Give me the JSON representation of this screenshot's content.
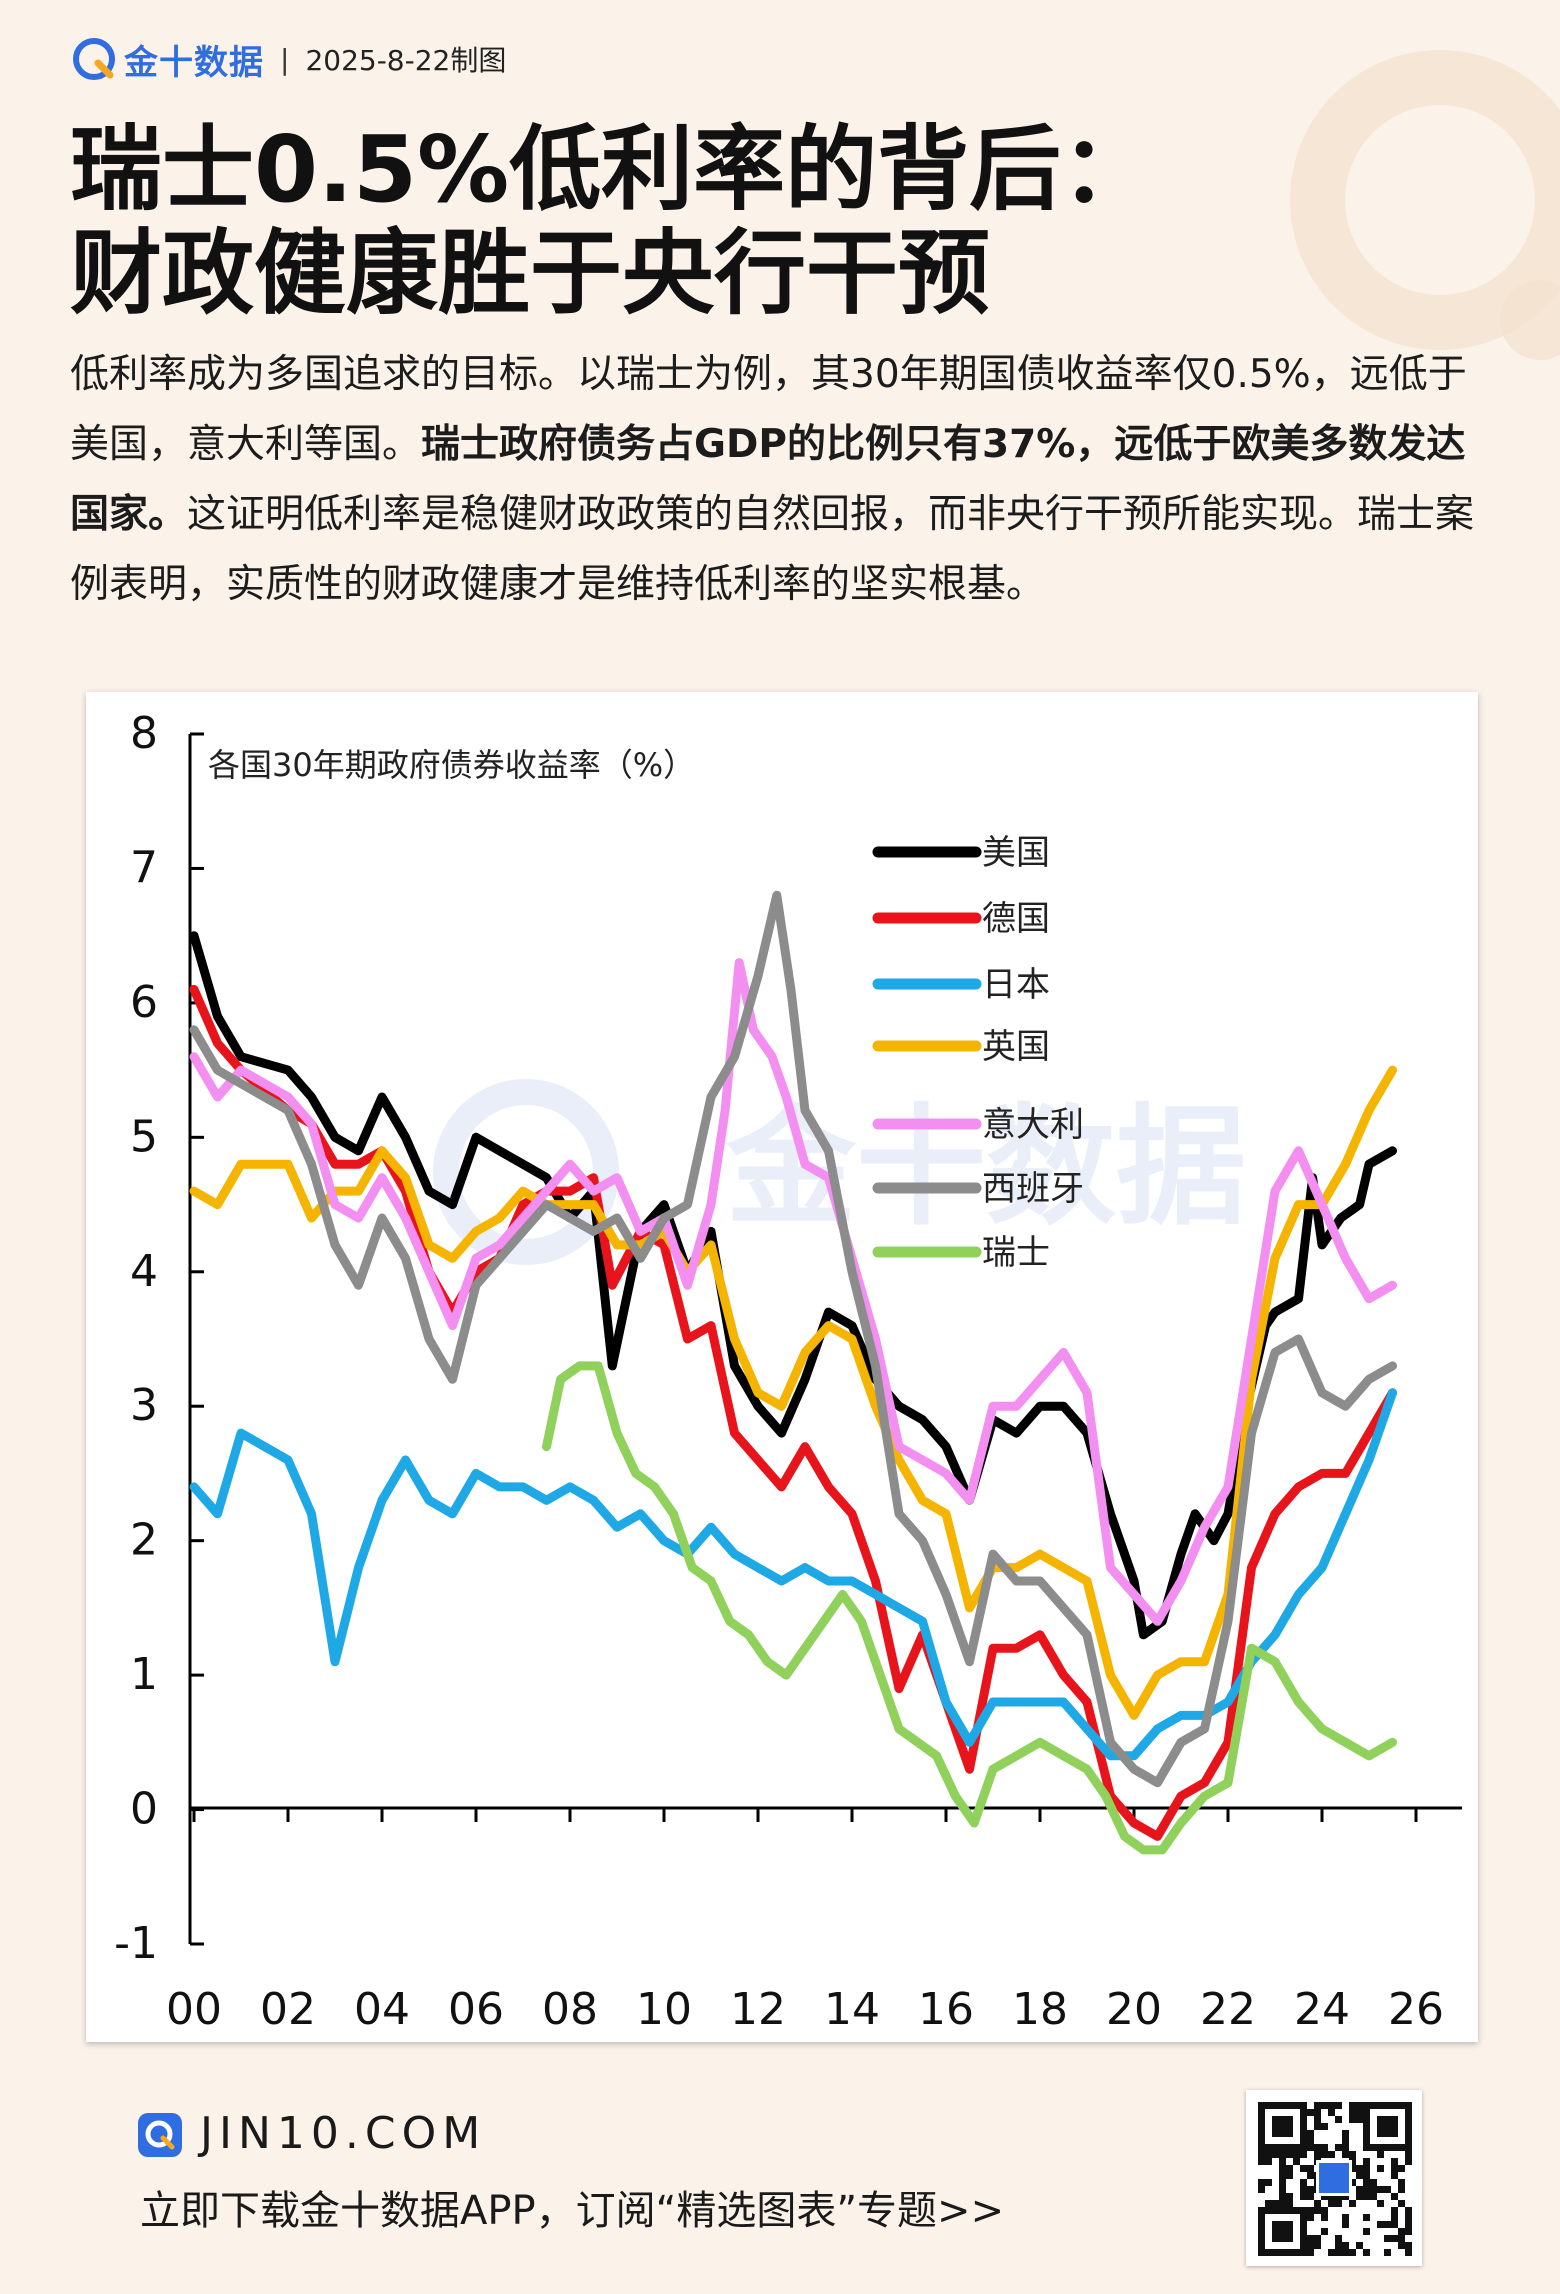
{
  "header": {
    "brand": "金十数据",
    "separator": "|",
    "date": "2025-8-22制图"
  },
  "title": {
    "line1": "瑞士0.5%低利率的背后：",
    "line2": "财政健康胜于央行干预"
  },
  "paragraph": {
    "part1": "低利率成为多国追求的目标。以瑞士为例，其30年期国债收益率仅0.5%，远低于美国，意大利等国。",
    "bold": "瑞士政府债务占GDP的比例只有37%，远低于欧美多数发达国家。",
    "part2": "这证明低利率是稳健财政政策的自然回报，而非央行干预所能实现。瑞士案例表明，实质性的财政健康才是维持低利率的坚实根基。"
  },
  "footer": {
    "url": "JIN10.COM",
    "text": "立即下载金十数据APP，订阅“精选图表”专题>>"
  },
  "colors": {
    "brand": "#2f6de0",
    "background": "#fbf3ea"
  },
  "chart_data": {
    "type": "line",
    "title": "各国30年期政府债券收益率（%）",
    "ylim": [
      -1,
      8
    ],
    "yticks": [
      -1,
      0,
      1,
      2,
      3,
      4,
      5,
      6,
      7,
      8
    ],
    "xlim": [
      2000,
      2026
    ],
    "xticks": [
      2000,
      2002,
      2004,
      2006,
      2008,
      2010,
      2012,
      2014,
      2016,
      2018,
      2020,
      2022,
      2024,
      2026
    ],
    "xtick_labels": [
      "00",
      "02",
      "04",
      "06",
      "08",
      "10",
      "12",
      "14",
      "16",
      "18",
      "20",
      "22",
      "24",
      "26"
    ],
    "legend_position": "upper-center",
    "grid": false,
    "series": [
      {
        "name": "美国",
        "color": "#000000",
        "x": [
          2000,
          2000.5,
          2001,
          2002,
          2002.5,
          2003,
          2003.5,
          2004,
          2004.5,
          2005,
          2005.5,
          2006,
          2006.5,
          2007,
          2007.5,
          2008,
          2008.5,
          2008.9,
          2009.5,
          2010,
          2010.5,
          2011,
          2011.5,
          2012,
          2012.5,
          2013,
          2013.5,
          2014,
          2014.5,
          2015,
          2015.5,
          2016,
          2016.5,
          2017,
          2017.5,
          2018,
          2018.5,
          2019,
          2019.5,
          2020,
          2020.2,
          2020.6,
          2021,
          2021.3,
          2021.7,
          2022,
          2022.4,
          2022.8,
          2023,
          2023.5,
          2023.8,
          2024,
          2024.4,
          2024.8,
          2025,
          2025.5
        ],
        "y": [
          6.5,
          5.9,
          5.6,
          5.5,
          5.3,
          5.0,
          4.9,
          5.3,
          5.0,
          4.6,
          4.5,
          5.0,
          4.9,
          4.8,
          4.7,
          4.4,
          4.6,
          3.3,
          4.3,
          4.5,
          4.0,
          4.3,
          3.3,
          3.0,
          2.8,
          3.2,
          3.7,
          3.6,
          3.2,
          3.0,
          2.9,
          2.7,
          2.3,
          2.9,
          2.8,
          3.0,
          3.0,
          2.8,
          2.2,
          1.7,
          1.3,
          1.4,
          1.9,
          2.2,
          2.0,
          2.2,
          3.0,
          3.6,
          3.7,
          3.8,
          4.7,
          4.2,
          4.4,
          4.5,
          4.8,
          4.9
        ]
      },
      {
        "name": "德国",
        "color": "#e8141b",
        "x": [
          2000,
          2000.5,
          2001,
          2002,
          2002.5,
          2003,
          2003.5,
          2004,
          2004.5,
          2005,
          2005.5,
          2006,
          2006.5,
          2007,
          2007.5,
          2008,
          2008.5,
          2008.9,
          2009.5,
          2010,
          2010.5,
          2011,
          2011.5,
          2012,
          2012.5,
          2013,
          2013.5,
          2014,
          2014.5,
          2015,
          2015.5,
          2016,
          2016.5,
          2017,
          2017.5,
          2018,
          2018.5,
          2019,
          2019.5,
          2020,
          2020.5,
          2021,
          2021.5,
          2022,
          2022.5,
          2023,
          2023.5,
          2024,
          2024.5,
          2025,
          2025.5
        ],
        "y": [
          6.1,
          5.7,
          5.5,
          5.2,
          5.1,
          4.8,
          4.8,
          4.9,
          4.6,
          4.0,
          3.7,
          4.0,
          4.1,
          4.5,
          4.6,
          4.6,
          4.7,
          3.9,
          4.3,
          4.2,
          3.5,
          3.6,
          2.8,
          2.6,
          2.4,
          2.7,
          2.4,
          2.2,
          1.7,
          0.9,
          1.3,
          0.8,
          0.3,
          1.2,
          1.2,
          1.3,
          1.0,
          0.8,
          0.1,
          -0.1,
          -0.2,
          0.1,
          0.2,
          0.5,
          1.8,
          2.2,
          2.4,
          2.5,
          2.5,
          2.8,
          3.1
        ]
      },
      {
        "name": "日本",
        "color": "#1ea8e6",
        "x": [
          2000,
          2000.5,
          2001,
          2002,
          2002.5,
          2003,
          2003.5,
          2004,
          2004.5,
          2005,
          2005.5,
          2006,
          2006.5,
          2007,
          2007.5,
          2008,
          2008.5,
          2009,
          2009.5,
          2010,
          2010.5,
          2011,
          2011.5,
          2012,
          2012.5,
          2013,
          2013.5,
          2014,
          2014.5,
          2015,
          2015.5,
          2016,
          2016.5,
          2017,
          2017.5,
          2018,
          2018.5,
          2019,
          2019.5,
          2020,
          2020.5,
          2021,
          2021.5,
          2022,
          2022.5,
          2023,
          2023.5,
          2024,
          2024.5,
          2025,
          2025.5
        ],
        "y": [
          2.4,
          2.2,
          2.8,
          2.6,
          2.2,
          1.1,
          1.8,
          2.3,
          2.6,
          2.3,
          2.2,
          2.5,
          2.4,
          2.4,
          2.3,
          2.4,
          2.3,
          2.1,
          2.2,
          2.0,
          1.9,
          2.1,
          1.9,
          1.8,
          1.7,
          1.8,
          1.7,
          1.7,
          1.6,
          1.5,
          1.4,
          0.8,
          0.5,
          0.8,
          0.8,
          0.8,
          0.8,
          0.6,
          0.4,
          0.4,
          0.6,
          0.7,
          0.7,
          0.8,
          1.1,
          1.3,
          1.6,
          1.8,
          2.2,
          2.6,
          3.1
        ]
      },
      {
        "name": "英国",
        "color": "#f5b400",
        "x": [
          2000,
          2000.5,
          2001,
          2002,
          2002.5,
          2003,
          2003.5,
          2004,
          2004.5,
          2005,
          2005.5,
          2006,
          2006.5,
          2007,
          2007.5,
          2008,
          2008.5,
          2009,
          2009.5,
          2010,
          2010.5,
          2011,
          2011.5,
          2012,
          2012.5,
          2013,
          2013.5,
          2014,
          2014.5,
          2015,
          2015.5,
          2016,
          2016.5,
          2017,
          2017.5,
          2018,
          2018.5,
          2019,
          2019.5,
          2020,
          2020.5,
          2021,
          2021.5,
          2022,
          2022.5,
          2023,
          2023.5,
          2024,
          2024.5,
          2025,
          2025.5
        ],
        "y": [
          4.6,
          4.5,
          4.8,
          4.8,
          4.4,
          4.6,
          4.6,
          4.9,
          4.7,
          4.2,
          4.1,
          4.3,
          4.4,
          4.6,
          4.5,
          4.5,
          4.5,
          4.2,
          4.2,
          4.3,
          4.0,
          4.2,
          3.5,
          3.1,
          3.0,
          3.4,
          3.6,
          3.5,
          3.0,
          2.6,
          2.3,
          2.2,
          1.5,
          1.8,
          1.8,
          1.9,
          1.8,
          1.7,
          1.0,
          0.7,
          1.0,
          1.1,
          1.1,
          1.6,
          3.2,
          4.1,
          4.5,
          4.5,
          4.8,
          5.2,
          5.5
        ]
      },
      {
        "name": "意大利",
        "color": "#f38ff0",
        "x": [
          2000,
          2000.5,
          2001,
          2002,
          2002.5,
          2003,
          2003.5,
          2004,
          2004.5,
          2005,
          2005.5,
          2006,
          2006.5,
          2007,
          2007.5,
          2008,
          2008.5,
          2009,
          2009.5,
          2010,
          2010.5,
          2011,
          2011.3,
          2011.6,
          2011.9,
          2012.3,
          2012.6,
          2013,
          2013.5,
          2014,
          2014.5,
          2015,
          2015.5,
          2016,
          2016.5,
          2017,
          2017.5,
          2018,
          2018.5,
          2019,
          2019.5,
          2020,
          2020.5,
          2021,
          2021.5,
          2022,
          2022.5,
          2023,
          2023.5,
          2024,
          2024.5,
          2025,
          2025.5
        ],
        "y": [
          5.6,
          5.3,
          5.5,
          5.3,
          5.1,
          4.5,
          4.4,
          4.7,
          4.4,
          4.0,
          3.6,
          4.1,
          4.2,
          4.4,
          4.6,
          4.8,
          4.6,
          4.7,
          4.3,
          4.4,
          3.9,
          4.5,
          5.2,
          6.3,
          5.8,
          5.6,
          5.3,
          4.8,
          4.7,
          4.1,
          3.5,
          2.7,
          2.6,
          2.5,
          2.3,
          3.0,
          3.0,
          3.2,
          3.4,
          3.1,
          1.8,
          1.6,
          1.4,
          1.7,
          2.1,
          2.4,
          3.5,
          4.6,
          4.9,
          4.5,
          4.1,
          3.8,
          3.9
        ]
      },
      {
        "name": "西班牙",
        "color": "#8c8c8c",
        "x": [
          2000,
          2000.5,
          2001,
          2002,
          2002.5,
          2003,
          2003.5,
          2004,
          2004.5,
          2005,
          2005.5,
          2006,
          2006.5,
          2007,
          2007.5,
          2008,
          2008.5,
          2009,
          2009.5,
          2010,
          2010.5,
          2011,
          2011.5,
          2012,
          2012.4,
          2012.7,
          2013,
          2013.5,
          2014,
          2014.5,
          2015,
          2015.5,
          2016,
          2016.5,
          2017,
          2017.5,
          2018,
          2018.5,
          2019,
          2019.5,
          2020,
          2020.5,
          2021,
          2021.5,
          2022,
          2022.5,
          2023,
          2023.5,
          2024,
          2024.5,
          2025,
          2025.5
        ],
        "y": [
          5.8,
          5.5,
          5.4,
          5.2,
          4.8,
          4.2,
          3.9,
          4.4,
          4.1,
          3.5,
          3.2,
          3.9,
          4.1,
          4.3,
          4.5,
          4.4,
          4.3,
          4.4,
          4.1,
          4.4,
          4.5,
          5.3,
          5.6,
          6.2,
          6.8,
          6.1,
          5.2,
          4.9,
          4.0,
          3.3,
          2.2,
          2.0,
          1.6,
          1.1,
          1.9,
          1.7,
          1.7,
          1.5,
          1.3,
          0.5,
          0.3,
          0.2,
          0.5,
          0.6,
          1.4,
          2.8,
          3.4,
          3.5,
          3.1,
          3.0,
          3.2,
          3.3
        ]
      },
      {
        "name": "瑞士",
        "color": "#8fd15a",
        "x": [
          2007.5,
          2007.8,
          2008.2,
          2008.6,
          2009,
          2009.4,
          2009.8,
          2010.2,
          2010.6,
          2011,
          2011.4,
          2011.8,
          2012.2,
          2012.6,
          2013,
          2013.4,
          2013.8,
          2014.2,
          2014.6,
          2015,
          2015.4,
          2015.8,
          2016.2,
          2016.6,
          2017,
          2017.5,
          2018,
          2018.5,
          2019,
          2019.4,
          2019.8,
          2020.2,
          2020.6,
          2021,
          2021.5,
          2022,
          2022.5,
          2023,
          2023.5,
          2024,
          2024.5,
          2025,
          2025.5
        ],
        "y": [
          2.7,
          3.2,
          3.3,
          3.3,
          2.8,
          2.5,
          2.4,
          2.2,
          1.8,
          1.7,
          1.4,
          1.3,
          1.1,
          1.0,
          1.2,
          1.4,
          1.6,
          1.4,
          1.0,
          0.6,
          0.5,
          0.4,
          0.1,
          -0.1,
          0.3,
          0.4,
          0.5,
          0.4,
          0.3,
          0.1,
          -0.2,
          -0.3,
          -0.3,
          -0.1,
          0.1,
          0.2,
          1.2,
          1.1,
          0.8,
          0.6,
          0.5,
          0.4,
          0.5
        ]
      }
    ]
  }
}
